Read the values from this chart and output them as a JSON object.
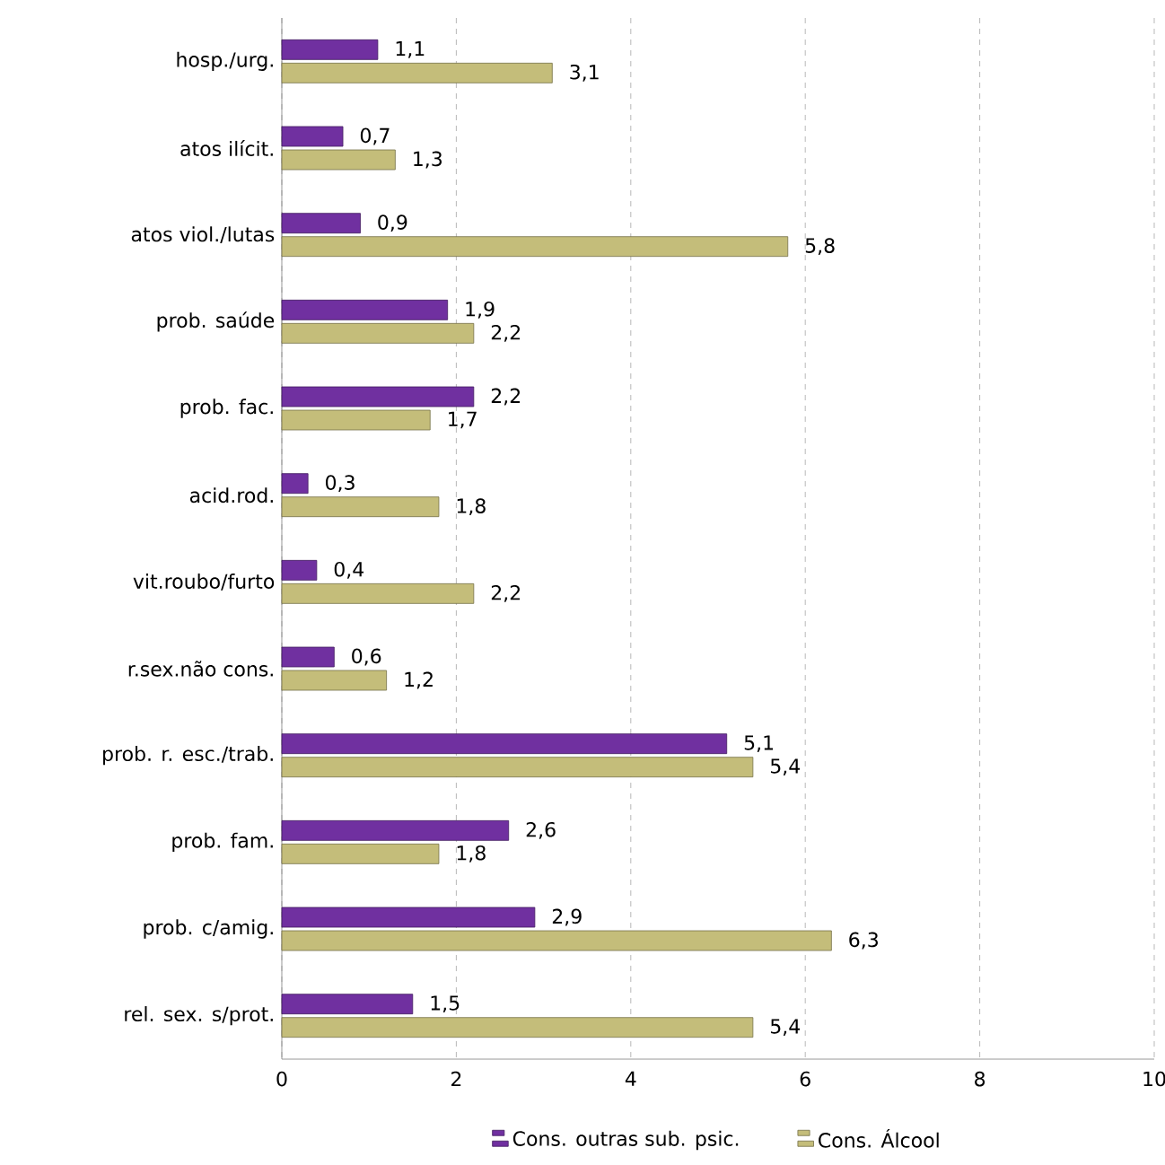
{
  "chart_data": {
    "type": "bar",
    "orientation": "horizontal",
    "categories": [
      "hosp./urg.",
      "atos ilícit.",
      "atos viol./lutas",
      "prob. saúde",
      "prob. fac.",
      "acid.rod.",
      "vit.roubo/furto",
      "r.sex.não cons.",
      "prob. r. esc./trab.",
      "prob. fam.",
      "prob. c/amig.",
      "rel. sex. s/prot."
    ],
    "series": [
      {
        "name": "Cons. outras sub. psic.",
        "color": "#7030a0",
        "values": [
          1.1,
          0.7,
          0.9,
          1.9,
          2.2,
          0.3,
          0.4,
          0.6,
          5.1,
          2.6,
          2.9,
          1.5
        ],
        "value_labels": [
          "1,1",
          "0,7",
          "0,9",
          "1,9",
          "2,2",
          "0,3",
          "0,4",
          "0,6",
          "5,1",
          "2,6",
          "2,9",
          "1,5"
        ]
      },
      {
        "name": "Cons. Álcool",
        "color": "#c4bd7a",
        "values": [
          3.1,
          1.3,
          5.8,
          2.2,
          1.7,
          1.8,
          2.2,
          1.2,
          5.4,
          1.8,
          6.3,
          5.4
        ],
        "value_labels": [
          "3,1",
          "1,3",
          "5,8",
          "2,2",
          "1,7",
          "1,8",
          "2,2",
          "1,2",
          "5,4",
          "1,8",
          "6,3",
          "5,4"
        ]
      }
    ],
    "xlim": [
      0,
      10
    ],
    "xticks": [
      0,
      2,
      4,
      6,
      8,
      10
    ],
    "grid": "x",
    "legend": "bottom"
  }
}
